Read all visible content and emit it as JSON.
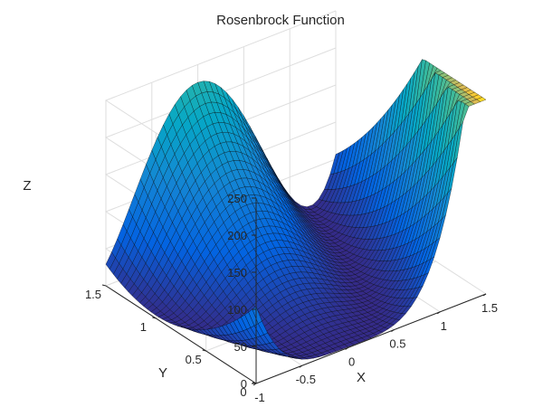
{
  "chart_data": {
    "type": "surface",
    "title": "Rosenbrock Function",
    "xlabel": "X",
    "ylabel": "Y",
    "zlabel": "Z",
    "function": "(1-x)^2 + 100*(y-x^2)^2",
    "xlim": [
      -1,
      1.5
    ],
    "ylim": [
      0,
      1.5
    ],
    "zlim": [
      0,
      250
    ],
    "x_ticks": [
      -1,
      -0.5,
      0,
      0.5,
      1,
      1.5
    ],
    "x_tick_labels": [
      "-1",
      "-0.5",
      "0",
      "0.5",
      "1",
      "1.5"
    ],
    "y_ticks": [
      0,
      0.5,
      1,
      1.5
    ],
    "y_tick_labels": [
      "0",
      "0.5",
      "1",
      "1.5"
    ],
    "z_ticks": [
      0,
      50,
      100,
      150,
      200,
      250
    ],
    "z_tick_labels": [
      "0",
      "50",
      "100",
      "150",
      "200",
      "250"
    ],
    "grid": "on",
    "colormap": "parula",
    "colormap_stops": [
      "#352a87",
      "#0363e1",
      "#1485d4",
      "#06a7c6",
      "#38b99e",
      "#92bf73",
      "#d9ba56",
      "#fcce2e",
      "#f9fb0e"
    ],
    "mesh_resolution": [
      40,
      40
    ],
    "edge_color": "#000000",
    "key_points": [
      {
        "x": -1,
        "y": 0,
        "z": 104
      },
      {
        "x": -1,
        "y": 1,
        "z": 4
      },
      {
        "x": -1,
        "y": 1.5,
        "z": 29
      },
      {
        "x": 1,
        "y": 1,
        "z": 0
      },
      {
        "x": 1.5,
        "y": 0,
        "z": 506.5
      },
      {
        "x": 1.5,
        "y": 1.5,
        "z": 56.5
      },
      {
        "x": 0,
        "y": 1.5,
        "z": 226
      }
    ]
  }
}
